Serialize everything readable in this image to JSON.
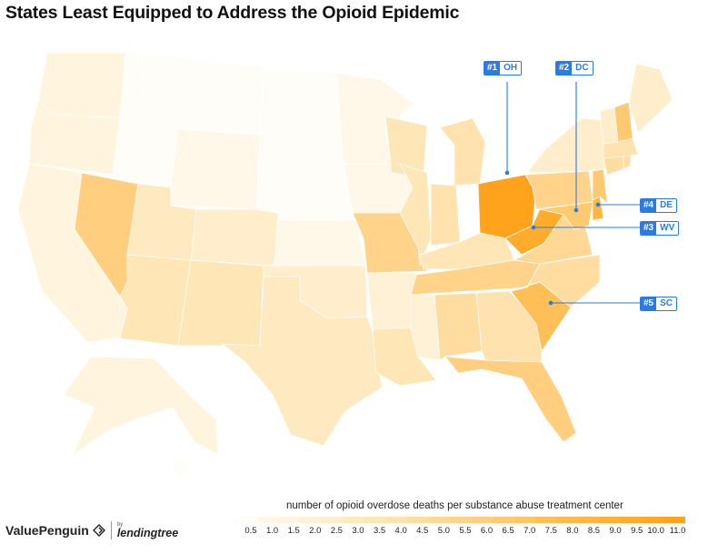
{
  "title": "States Least Equipped to Address the Opioid Epidemic",
  "colors": {
    "scale": [
      "#fffdf8",
      "#fff8e8",
      "#fff5df",
      "#fff1d6",
      "#ffedcc",
      "#ffe9c1",
      "#ffe6b7",
      "#ffe2ad",
      "#ffdda1",
      "#ffd895",
      "#ffd38a",
      "#ffce7e",
      "#ffc970",
      "#ffc464",
      "#ffbf57",
      "#ffba4c",
      "#ffb53f",
      "#ffb034",
      "#ffab2b",
      "#ffa724",
      "#ffa31c",
      "#ff9f12"
    ],
    "callout": "#2a7be4"
  },
  "callouts": [
    {
      "rank": "#1",
      "state": "OH"
    },
    {
      "rank": "#2",
      "state": "DC"
    },
    {
      "rank": "#3",
      "state": "WV"
    },
    {
      "rank": "#4",
      "state": "DE"
    },
    {
      "rank": "#5",
      "state": "SC"
    }
  ],
  "state_values": {
    "WA": 1.7,
    "OR": 1.4,
    "CA": 1.6,
    "NV": 6.2,
    "ID": 0.6,
    "MT": 0.3,
    "WY": 1.2,
    "UT": 2.8,
    "AZ": 3.3,
    "CO": 2.4,
    "NM": 3.6,
    "ND": 0.4,
    "SD": 0.5,
    "NE": 0.5,
    "KS": 0.9,
    "OK": 2.3,
    "TX": 2.9,
    "MN": 1.1,
    "IA": 0.9,
    "MO": 5.4,
    "AR": 1.8,
    "LA": 3.4,
    "WI": 3.5,
    "IL": 3.4,
    "MI": 4.0,
    "IN": 3.9,
    "OH": 10.6,
    "KY": 3.7,
    "TN": 5.6,
    "MS": 2.0,
    "AL": 4.3,
    "GA": 3.9,
    "FL": 6.0,
    "SC": 7.4,
    "NC": 4.4,
    "VA": 5.1,
    "WV": 9.6,
    "PA": 5.4,
    "NY": 2.4,
    "VT": 2.6,
    "NH": 6.3,
    "ME": 2.3,
    "MA": 4.1,
    "CT": 4.6,
    "RI": 4.5,
    "NJ": 6.5,
    "DE": 8.5,
    "MD": 6.5,
    "DC": 9.6,
    "AK": 1.5,
    "HI": 0.7
  },
  "legend": {
    "title": "number of opioid overdose deaths per substance abuse treatment center",
    "ticks": [
      "0.5",
      "1.0",
      "1.5",
      "2.0",
      "2.5",
      "3.0",
      "3.5",
      "4.0",
      "4.5",
      "5.0",
      "5.5",
      "6.0",
      "6.5",
      "7.0",
      "7.5",
      "8.0",
      "8.5",
      "9.0",
      "9.5",
      "10.0",
      "11.0"
    ]
  },
  "branding": {
    "valuepenguin": "ValuePenguin",
    "by": "by",
    "lendingtree": "lendingtree"
  }
}
